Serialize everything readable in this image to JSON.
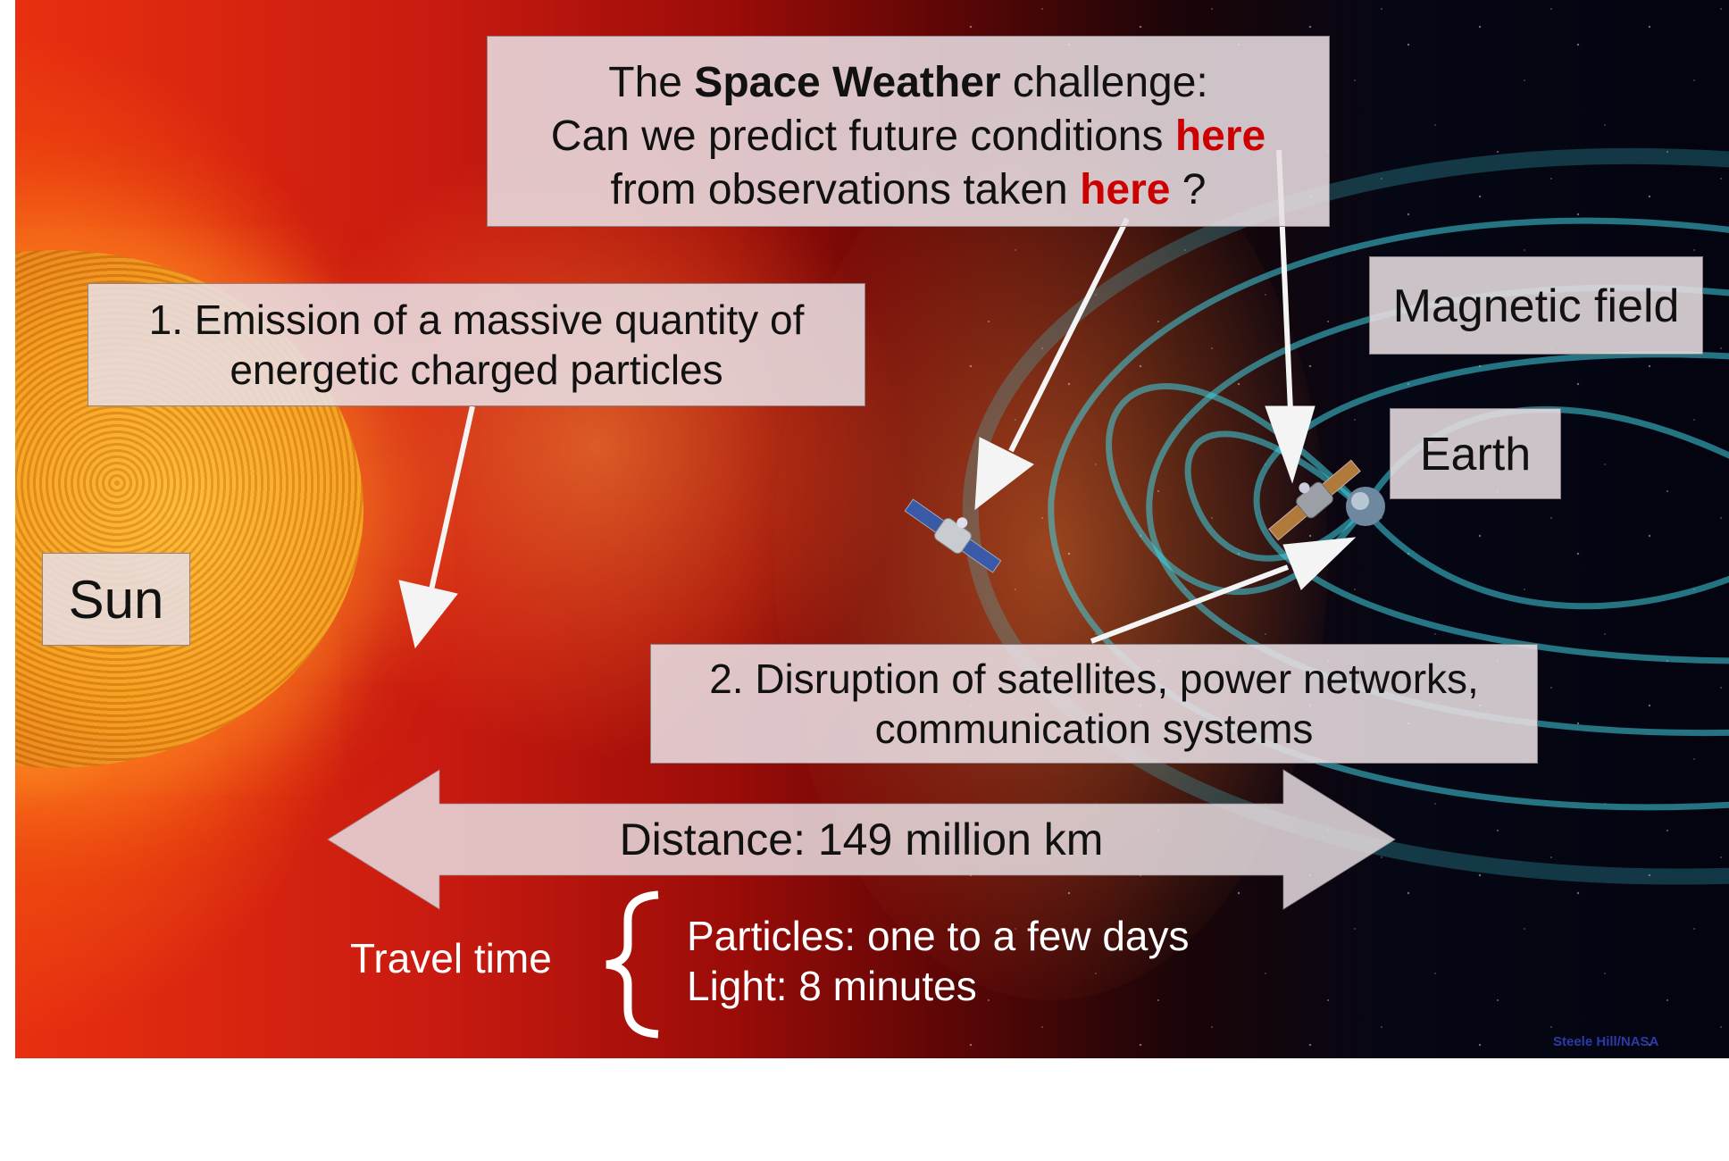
{
  "challenge": {
    "line1_pre": "The ",
    "line1_bold": "Space Weather",
    "line1_post": " challenge:",
    "line2_pre": "Can we predict future conditions ",
    "line2_highlight": "here",
    "line3_pre": "from observations taken ",
    "line3_highlight": "here",
    "line3_post": " ?"
  },
  "labels": {
    "emission_line1": "1. Emission of a massive quantity of",
    "emission_line2": "energetic charged particles",
    "sun": "Sun",
    "magnetic_field": "Magnetic field",
    "earth": "Earth",
    "disruption_line1": "2. Disruption of satellites, power networks,",
    "disruption_line2": "communication systems",
    "distance": "Distance: 149 million km"
  },
  "travel": {
    "label": "Travel time",
    "particles": "Particles: one to a few days",
    "light": "Light: 8 minutes"
  },
  "credit": "Steele Hill/NASA",
  "colors": {
    "highlight": "#cc0000",
    "box_fill": "#e8dee2",
    "field_lines": "#3fd0e0",
    "credit": "#2c3aa8"
  }
}
